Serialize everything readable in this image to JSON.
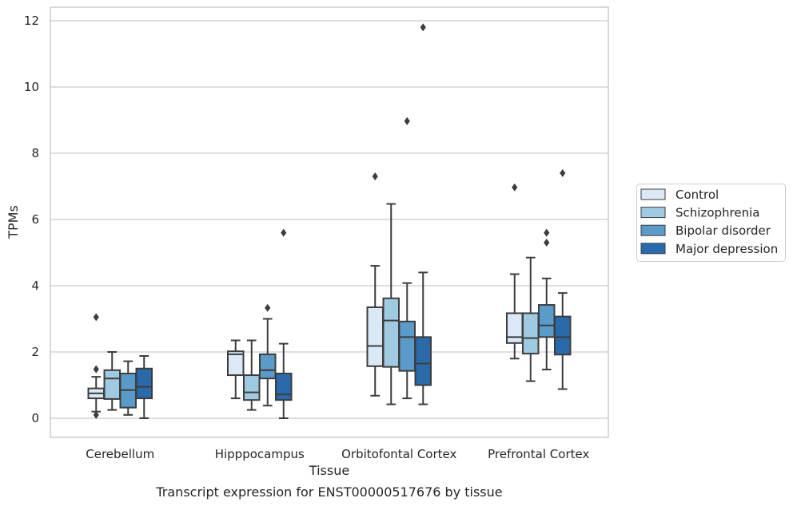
{
  "chart_data": {
    "type": "box",
    "title": "",
    "caption": "Transcript expression for ENST00000517676 by tissue",
    "xlabel": "Tissue",
    "ylabel": "TPMs",
    "ylim": [
      -0.55,
      12.4
    ],
    "yticks": [
      0,
      2,
      4,
      6,
      8,
      10,
      12
    ],
    "grid": "horizontal",
    "legend_position": "right",
    "categories": [
      "Cerebellum",
      "Hipppocampus",
      "Orbitofontal Cortex",
      "Prefrontal Cortex"
    ],
    "series": [
      {
        "name": "Control",
        "color": "#dbe9f6",
        "boxes": [
          {
            "whisker_low": 0.2,
            "q1": 0.6,
            "median": 0.75,
            "q3": 0.9,
            "whisker_high": 1.25,
            "outliers": [
              3.05,
              1.48,
              0.1
            ]
          },
          {
            "whisker_low": 0.6,
            "q1": 1.3,
            "median": 1.93,
            "q3": 2.02,
            "whisker_high": 2.35,
            "outliers": []
          },
          {
            "whisker_low": 0.68,
            "q1": 1.57,
            "median": 2.18,
            "q3": 3.35,
            "whisker_high": 4.6,
            "outliers": [
              7.3
            ]
          },
          {
            "whisker_low": 1.8,
            "q1": 2.27,
            "median": 2.45,
            "q3": 3.17,
            "whisker_high": 4.35,
            "outliers": [
              6.97
            ]
          }
        ]
      },
      {
        "name": "Schizophrenia",
        "color": "#a0cae1",
        "boxes": [
          {
            "whisker_low": 0.25,
            "q1": 0.58,
            "median": 1.2,
            "q3": 1.45,
            "whisker_high": 2.0,
            "outliers": []
          },
          {
            "whisker_low": 0.25,
            "q1": 0.55,
            "median": 0.78,
            "q3": 1.3,
            "whisker_high": 2.35,
            "outliers": []
          },
          {
            "whisker_low": 0.42,
            "q1": 1.55,
            "median": 2.95,
            "q3": 3.62,
            "whisker_high": 6.47,
            "outliers": []
          },
          {
            "whisker_low": 1.12,
            "q1": 1.95,
            "median": 2.42,
            "q3": 3.17,
            "whisker_high": 4.85,
            "outliers": []
          }
        ]
      },
      {
        "name": "Bipolar disorder",
        "color": "#5b9bc9",
        "boxes": [
          {
            "whisker_low": 0.1,
            "q1": 0.32,
            "median": 0.85,
            "q3": 1.35,
            "whisker_high": 1.72,
            "outliers": []
          },
          {
            "whisker_low": 0.38,
            "q1": 1.2,
            "median": 1.45,
            "q3": 1.93,
            "whisker_high": 3.0,
            "outliers": [
              3.33
            ]
          },
          {
            "whisker_low": 0.6,
            "q1": 1.43,
            "median": 2.45,
            "q3": 2.92,
            "whisker_high": 4.08,
            "outliers": [
              8.97
            ]
          },
          {
            "whisker_low": 1.47,
            "q1": 2.45,
            "median": 2.8,
            "q3": 3.42,
            "whisker_high": 4.22,
            "outliers": [
              5.6,
              5.3
            ]
          }
        ]
      },
      {
        "name": "Major depression",
        "color": "#2a6aab",
        "boxes": [
          {
            "whisker_low": 0.0,
            "q1": 0.6,
            "median": 0.95,
            "q3": 1.5,
            "whisker_high": 1.88,
            "outliers": []
          },
          {
            "whisker_low": 0.0,
            "q1": 0.55,
            "median": 0.72,
            "q3": 1.35,
            "whisker_high": 2.25,
            "outliers": [
              5.6
            ]
          },
          {
            "whisker_low": 0.42,
            "q1": 1.0,
            "median": 1.65,
            "q3": 2.45,
            "whisker_high": 4.4,
            "outliers": [
              11.8
            ]
          },
          {
            "whisker_low": 0.88,
            "q1": 1.92,
            "median": 2.45,
            "q3": 3.07,
            "whisker_high": 3.78,
            "outliers": [
              7.4
            ]
          }
        ]
      }
    ]
  }
}
